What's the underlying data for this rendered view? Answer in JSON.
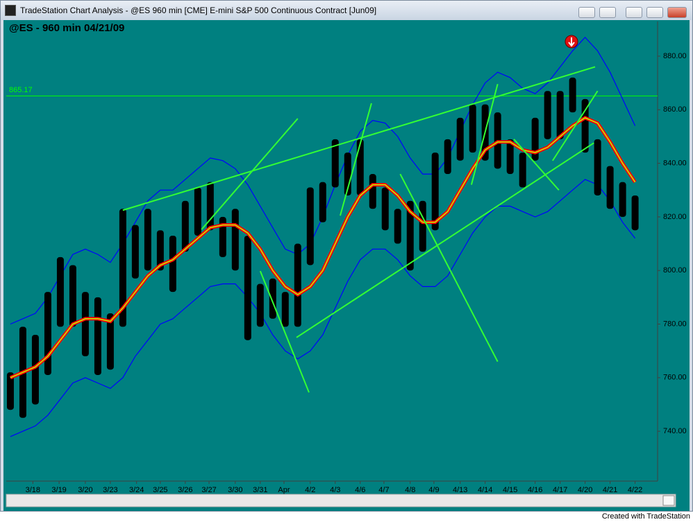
{
  "window": {
    "title": "TradeStation Chart Analysis - @ES 960 min [CME] E-mini S&P 500 Continuous Contract [Jun09]"
  },
  "footer": "Created with TradeStation",
  "chart_data": {
    "type": "range-bar",
    "title": "@ES - 960 min  04/21/09",
    "x": [
      0,
      1,
      2,
      3,
      4,
      5,
      6,
      7,
      8,
      9,
      10,
      11,
      12,
      13,
      14,
      15,
      16,
      17,
      18,
      19,
      20,
      21,
      22,
      23,
      24,
      25,
      26,
      27,
      28,
      29,
      30,
      31,
      32,
      33,
      34,
      35,
      36,
      37,
      38,
      39,
      40,
      41,
      42,
      43,
      44,
      45,
      46,
      47,
      48,
      49,
      50
    ],
    "high": [
      762,
      779,
      776,
      792,
      805,
      802,
      792,
      790,
      784,
      823,
      817,
      823,
      815,
      813,
      826,
      831,
      833,
      820,
      823,
      813,
      795,
      797,
      792,
      810,
      831,
      833,
      849,
      844,
      849,
      836,
      831,
      823,
      826,
      826,
      844,
      849,
      857,
      862,
      862,
      859,
      849,
      844,
      857,
      867,
      867,
      872,
      864,
      849,
      839,
      833,
      828
    ],
    "low": [
      748,
      745,
      750,
      761,
      779,
      779,
      768,
      761,
      763,
      779,
      797,
      800,
      800,
      792,
      807,
      813,
      815,
      805,
      800,
      774,
      779,
      782,
      779,
      779,
      802,
      818,
      831,
      828,
      828,
      823,
      815,
      810,
      800,
      807,
      815,
      836,
      841,
      844,
      841,
      838,
      836,
      831,
      841,
      849,
      849,
      859,
      844,
      828,
      823,
      820,
      815
    ],
    "bar_color": "#000000",
    "midline": {
      "color": "#ff0000",
      "inner_color": "#b8ff00",
      "values": [
        760,
        762,
        764,
        768,
        774,
        780,
        782,
        782,
        781,
        786,
        792,
        798,
        802,
        804,
        808,
        812,
        816,
        817,
        817,
        814,
        808,
        800,
        794,
        791,
        794,
        800,
        810,
        820,
        828,
        832,
        832,
        828,
        822,
        818,
        818,
        822,
        830,
        838,
        845,
        848,
        848,
        845,
        844,
        846,
        850,
        854,
        857,
        855,
        848,
        840,
        833
      ]
    },
    "bands": [
      {
        "color": "#0000ff",
        "values": [
          780,
          782,
          784,
          790,
          798,
          806,
          808,
          806,
          803,
          810,
          818,
          826,
          830,
          830,
          834,
          838,
          842,
          841,
          838,
          832,
          824,
          816,
          808,
          806,
          810,
          820,
          832,
          843,
          852,
          856,
          855,
          850,
          842,
          836,
          836,
          842,
          852,
          862,
          870,
          874,
          872,
          868,
          866,
          870,
          876,
          882,
          887,
          882,
          874,
          864,
          854
        ]
      },
      {
        "color": "#0000ff",
        "values": [
          738,
          740,
          742,
          746,
          752,
          758,
          760,
          758,
          756,
          760,
          768,
          774,
          780,
          782,
          786,
          790,
          794,
          795,
          795,
          790,
          784,
          776,
          770,
          767,
          770,
          776,
          786,
          796,
          804,
          808,
          808,
          804,
          798,
          794,
          794,
          798,
          806,
          814,
          820,
          824,
          824,
          822,
          820,
          822,
          826,
          830,
          834,
          832,
          826,
          818,
          812
        ]
      }
    ],
    "hline": {
      "value": 865.17,
      "label": "865.17",
      "color": "#00ff00"
    },
    "trendline_color": "#33ff33",
    "trendlines": [
      {
        "x": [
          9,
          46.8
        ],
        "y": [
          822.5,
          876
        ]
      },
      {
        "x": [
          22.9,
          46.7
        ],
        "y": [
          775,
          847.6
        ]
      },
      {
        "x": [
          15.3,
          23
        ],
        "y": [
          815.3,
          856.7
        ]
      },
      {
        "x": [
          20,
          23.9
        ],
        "y": [
          799.8,
          754.5
        ]
      },
      {
        "x": [
          26.4,
          28.9
        ],
        "y": [
          820.5,
          862.4
        ]
      },
      {
        "x": [
          31.2,
          39
        ],
        "y": [
          836,
          766
        ]
      },
      {
        "x": [
          36.9,
          39
        ],
        "y": [
          832,
          869.6
        ]
      },
      {
        "x": [
          40.3,
          43.9
        ],
        "y": [
          849,
          830
        ]
      },
      {
        "x": [
          43.4,
          47
        ],
        "y": [
          841,
          867
        ]
      }
    ],
    "xlim": [
      -0.33,
      51.8
    ],
    "ylim": [
      721.4,
      891.9
    ],
    "yticks": [
      {
        "value": 740,
        "label": "740.00"
      },
      {
        "value": 760,
        "label": "760.00"
      },
      {
        "value": 780,
        "label": "780.00"
      },
      {
        "value": 800,
        "label": "800.00"
      },
      {
        "value": 820,
        "label": "820.00"
      },
      {
        "value": 840,
        "label": "840.00"
      },
      {
        "value": 860,
        "label": "860.00"
      },
      {
        "value": 880,
        "label": "880.00"
      }
    ],
    "xticks": [
      {
        "value": 1.8,
        "label": "3/18"
      },
      {
        "value": 3.9,
        "label": "3/19"
      },
      {
        "value": 6,
        "label": "3/20"
      },
      {
        "value": 8,
        "label": "3/23"
      },
      {
        "value": 10.1,
        "label": "3/24"
      },
      {
        "value": 12,
        "label": "3/25"
      },
      {
        "value": 14,
        "label": "3/26"
      },
      {
        "value": 15.9,
        "label": "3/27"
      },
      {
        "value": 18,
        "label": "3/30"
      },
      {
        "value": 20,
        "label": "3/31"
      },
      {
        "value": 21.9,
        "label": "Apr"
      },
      {
        "value": 24,
        "label": "4/2"
      },
      {
        "value": 26,
        "label": "4/3"
      },
      {
        "value": 28,
        "label": "4/6"
      },
      {
        "value": 29.9,
        "label": "4/7"
      },
      {
        "value": 32,
        "label": "4/8"
      },
      {
        "value": 33.9,
        "label": "4/9"
      },
      {
        "value": 36,
        "label": "4/13"
      },
      {
        "value": 38,
        "label": "4/14"
      },
      {
        "value": 40,
        "label": "4/15"
      },
      {
        "value": 42,
        "label": "4/16"
      },
      {
        "value": 44,
        "label": "4/17"
      },
      {
        "value": 46,
        "label": "4/20"
      },
      {
        "value": 48,
        "label": "4/21"
      },
      {
        "value": 50,
        "label": "4/22"
      }
    ]
  }
}
